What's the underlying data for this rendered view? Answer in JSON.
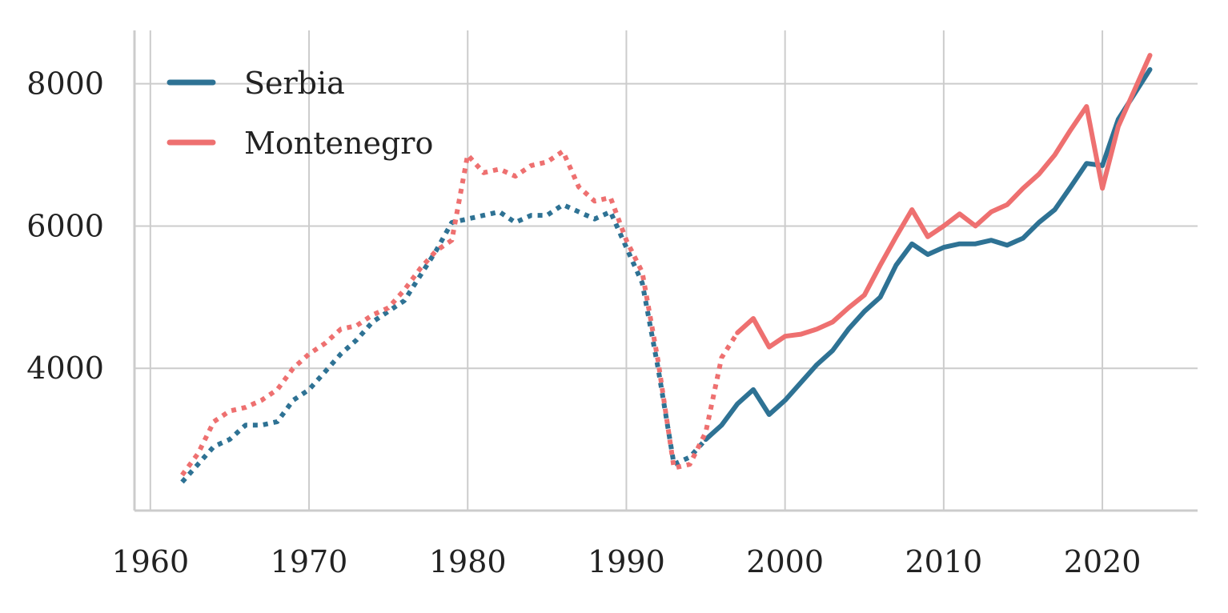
{
  "chart_data": {
    "type": "line",
    "title": "",
    "xlabel": "",
    "ylabel": "",
    "xlim": [
      1959,
      2026
    ],
    "ylim": [
      2000,
      8750
    ],
    "x_ticks": [
      1960,
      1970,
      1980,
      1990,
      2000,
      2010,
      2020
    ],
    "x_tick_labels": [
      "1960",
      "1970",
      "1980",
      "1990",
      "2000",
      "2010",
      "2020"
    ],
    "y_ticks": [
      4000,
      6000,
      8000
    ],
    "y_tick_labels": [
      "4000",
      "6000",
      "8000"
    ],
    "grid": true,
    "legend_position": "top-left",
    "series": [
      {
        "name": "Serbia",
        "color": "#2e7294",
        "segments": [
          {
            "style": "dotted",
            "x": [
              1962,
              1963,
              1964,
              1965,
              1966,
              1967,
              1968,
              1969,
              1970,
              1971,
              1972,
              1973,
              1974,
              1975,
              1976,
              1977,
              1978,
              1979,
              1980,
              1981,
              1982,
              1983,
              1984,
              1985,
              1986,
              1987,
              1988,
              1989,
              1990,
              1991,
              1992,
              1993,
              1994,
              1995
            ],
            "y": [
              2400,
              2650,
              2900,
              3000,
              3200,
              3200,
              3250,
              3550,
              3700,
              3950,
              4200,
              4400,
              4650,
              4800,
              4950,
              5300,
              5650,
              6050,
              6100,
              6150,
              6200,
              6050,
              6150,
              6150,
              6300,
              6200,
              6100,
              6200,
              5700,
              5200,
              4000,
              2650,
              2750,
              3000
            ]
          },
          {
            "style": "solid",
            "x": [
              1995,
              1996,
              1997,
              1998,
              1999,
              2000,
              2001,
              2002,
              2003,
              2004,
              2005,
              2006,
              2007,
              2008,
              2009,
              2010,
              2011,
              2012,
              2013,
              2014,
              2015,
              2016,
              2017,
              2018,
              2019,
              2020,
              2021,
              2022,
              2023
            ],
            "y": [
              3000,
              3200,
              3500,
              3700,
              3350,
              3550,
              3800,
              4050,
              4250,
              4550,
              4800,
              5000,
              5450,
              5750,
              5600,
              5700,
              5750,
              5750,
              5800,
              5730,
              5830,
              6050,
              6230,
              6550,
              6880,
              6850,
              7500,
              7850,
              8200
            ]
          }
        ]
      },
      {
        "name": "Montenegro",
        "color": "#ee7070",
        "segments": [
          {
            "style": "dotted",
            "x": [
              1962,
              1963,
              1964,
              1965,
              1966,
              1967,
              1968,
              1969,
              1970,
              1971,
              1972,
              1973,
              1974,
              1975,
              1976,
              1977,
              1978,
              1979,
              1980,
              1981,
              1982,
              1983,
              1984,
              1985,
              1986,
              1987,
              1988,
              1989,
              1990,
              1991,
              1992,
              1993,
              1994,
              1995,
              1996,
              1997
            ],
            "y": [
              2500,
              2800,
              3250,
              3400,
              3450,
              3550,
              3700,
              4000,
              4200,
              4350,
              4550,
              4600,
              4750,
              4850,
              5100,
              5400,
              5650,
              5800,
              7000,
              6750,
              6800,
              6700,
              6850,
              6900,
              7050,
              6550,
              6350,
              6400,
              5800,
              5350,
              4100,
              2600,
              2650,
              3100,
              4150,
              4500
            ]
          },
          {
            "style": "solid",
            "x": [
              1997,
              1998,
              1999,
              2000,
              2001,
              2002,
              2003,
              2004,
              2005,
              2006,
              2007,
              2008,
              2009,
              2010,
              2011,
              2012,
              2013,
              2014,
              2015,
              2016,
              2017,
              2018,
              2019,
              2020,
              2021,
              2022,
              2023
            ],
            "y": [
              4500,
              4700,
              4300,
              4450,
              4480,
              4550,
              4650,
              4850,
              5030,
              5450,
              5850,
              6230,
              5850,
              6000,
              6170,
              6000,
              6200,
              6300,
              6530,
              6730,
              7000,
              7350,
              7680,
              6530,
              7400,
              7900,
              8400
            ]
          }
        ]
      }
    ]
  }
}
